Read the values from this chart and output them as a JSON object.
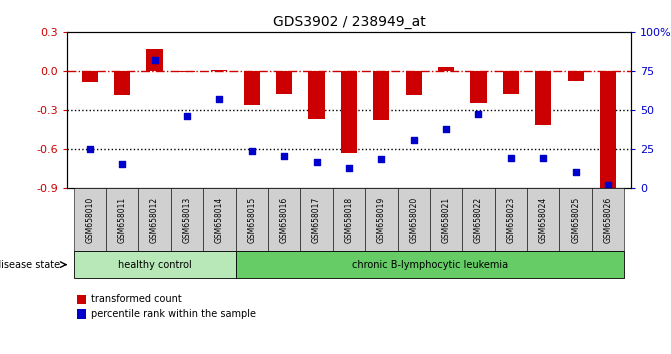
{
  "title": "GDS3902 / 238949_at",
  "samples": [
    "GSM658010",
    "GSM658011",
    "GSM658012",
    "GSM658013",
    "GSM658014",
    "GSM658015",
    "GSM658016",
    "GSM658017",
    "GSM658018",
    "GSM658019",
    "GSM658020",
    "GSM658021",
    "GSM658022",
    "GSM658023",
    "GSM658024",
    "GSM658025",
    "GSM658026"
  ],
  "bar_values": [
    -0.09,
    -0.19,
    0.17,
    -0.01,
    0.01,
    -0.26,
    -0.18,
    -0.37,
    -0.63,
    -0.38,
    -0.19,
    0.03,
    -0.25,
    -0.18,
    -0.42,
    -0.08,
    -0.9
  ],
  "percentile_values": [
    -0.6,
    -0.72,
    0.08,
    -0.35,
    -0.22,
    -0.62,
    -0.66,
    -0.7,
    -0.75,
    -0.68,
    -0.53,
    -0.45,
    -0.33,
    -0.67,
    -0.67,
    -0.78,
    -0.88
  ],
  "healthy_count": 5,
  "bar_color": "#cc0000",
  "percentile_color": "#0000cc",
  "dashed_line_color": "#cc0000",
  "dotted_line_color": "#000000",
  "ylim_left": [
    -0.9,
    0.3
  ],
  "ylim_right": [
    0,
    100
  ],
  "left_yticks": [
    -0.9,
    -0.6,
    -0.3,
    0.0,
    0.3
  ],
  "right_yticks": [
    0,
    25,
    50,
    75,
    100
  ],
  "right_yticklabels": [
    "0",
    "25",
    "50",
    "75",
    "100%"
  ],
  "healthy_label": "healthy control",
  "disease_label": "chronic B-lymphocytic leukemia",
  "disease_state_label": "disease state",
  "legend_bar_label": "transformed count",
  "legend_pct_label": "percentile rank within the sample",
  "bar_width": 0.5,
  "healthy_bg": "#b8e8b8",
  "disease_bg": "#66cc66",
  "xticklabel_bg": "#d0d0d0"
}
